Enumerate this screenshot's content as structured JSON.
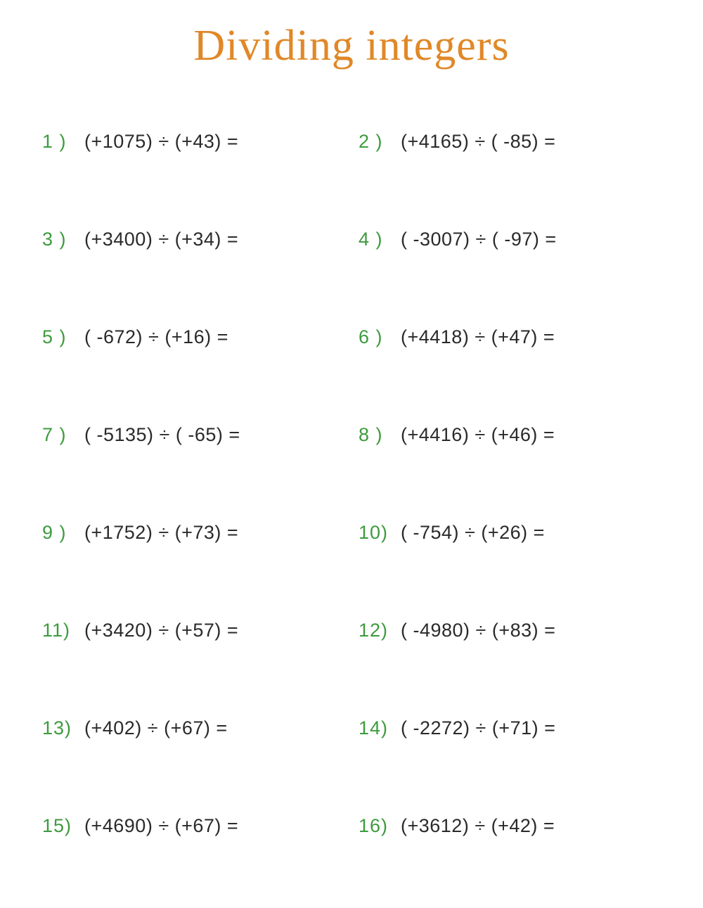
{
  "title": "Dividing integers",
  "title_color": "#e08828",
  "number_color": "#3e9b3e",
  "expression_color": "#2a2a2a",
  "background_color": "#ffffff",
  "title_fontsize": 62,
  "body_fontsize": 27,
  "columns": 2,
  "row_gap": 108,
  "problems": [
    {
      "num": "1 )",
      "expr": "(+1075) ÷ (+43)  ="
    },
    {
      "num": "2 )",
      "expr": "(+4165) ÷ ( -85)  ="
    },
    {
      "num": "3 )",
      "expr": "(+3400) ÷ (+34)  ="
    },
    {
      "num": "4 )",
      "expr": "( -3007) ÷ ( -97)  ="
    },
    {
      "num": "5 )",
      "expr": "( -672) ÷ (+16)  ="
    },
    {
      "num": "6 )",
      "expr": "(+4418) ÷ (+47)  ="
    },
    {
      "num": "7 )",
      "expr": "( -5135) ÷ ( -65)  ="
    },
    {
      "num": "8 )",
      "expr": "(+4416) ÷ (+46)  ="
    },
    {
      "num": "9 )",
      "expr": "(+1752) ÷ (+73)  ="
    },
    {
      "num": "10)",
      "expr": "( -754) ÷ (+26)  ="
    },
    {
      "num": "11)",
      "expr": "(+3420) ÷ (+57)  ="
    },
    {
      "num": "12)",
      "expr": "( -4980) ÷ (+83)  ="
    },
    {
      "num": "13)",
      "expr": "(+402) ÷ (+67)  ="
    },
    {
      "num": "14)",
      "expr": "( -2272) ÷ (+71)  ="
    },
    {
      "num": "15)",
      "expr": "(+4690) ÷ (+67)  ="
    },
    {
      "num": "16)",
      "expr": "(+3612) ÷ (+42)  ="
    }
  ]
}
